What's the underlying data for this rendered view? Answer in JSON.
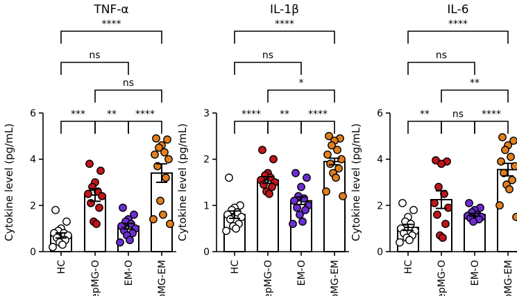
{
  "colors": {
    "HC": "#ffffff",
    "epMG-O": "#c0161b",
    "EM-O": "#6d2ed1",
    "epMG-EM": "#e07f1f",
    "stroke": "#000000"
  },
  "chart_data": [
    {
      "type": "scatter-bar",
      "title": "TNF-α",
      "ylabel": "Cytokine level (pg/mL)",
      "ylim": [
        0,
        6
      ],
      "yticks": [
        0,
        2,
        4,
        6
      ],
      "categories": [
        "HC",
        "epMG-O",
        "EM-O",
        "epMG-EM"
      ],
      "series": [
        {
          "name": "HC",
          "mean": 0.7,
          "sem": 0.11,
          "points": [
            1.8,
            1.3,
            1.0,
            0.9,
            0.8,
            0.8,
            0.7,
            0.6,
            0.5,
            0.4,
            0.3,
            0.2
          ]
        },
        {
          "name": "epMG-O",
          "mean": 2.45,
          "sem": 0.27,
          "points": [
            3.8,
            3.5,
            3.0,
            2.8,
            2.6,
            2.5,
            2.4,
            2.1,
            1.9,
            1.3,
            1.2
          ]
        },
        {
          "name": "EM-O",
          "mean": 1.1,
          "sem": 0.12,
          "points": [
            1.9,
            1.6,
            1.4,
            1.3,
            1.2,
            1.1,
            1.0,
            0.9,
            0.8,
            0.7,
            0.5,
            0.4
          ]
        },
        {
          "name": "epMG-EM",
          "mean": 3.4,
          "sem": 0.4,
          "points": [
            4.9,
            4.85,
            4.6,
            4.5,
            4.3,
            4.2,
            4.0,
            3.7,
            3.2,
            2.2,
            1.6,
            1.4,
            1.2
          ]
        }
      ],
      "comparisons": [
        {
          "a": 0,
          "b": 1,
          "label": "***"
        },
        {
          "a": 1,
          "b": 2,
          "label": "**"
        },
        {
          "a": 2,
          "b": 3,
          "label": "****"
        },
        {
          "a": 0,
          "b": 2,
          "label": "ns"
        },
        {
          "a": 1,
          "b": 3,
          "label": "ns"
        },
        {
          "a": 0,
          "b": 3,
          "label": "****"
        }
      ]
    },
    {
      "type": "scatter-bar",
      "title": "IL-1β",
      "ylabel": "Cytokine level (pg/mL)",
      "ylim": [
        0,
        3
      ],
      "yticks": [
        0,
        1,
        2,
        3
      ],
      "categories": [
        "HC",
        "epMG-O",
        "EM-O",
        "epMG-EM"
      ],
      "series": [
        {
          "name": "HC",
          "mean": 0.8,
          "sem": 0.08,
          "points": [
            1.6,
            1.0,
            0.95,
            0.9,
            0.85,
            0.8,
            0.75,
            0.7,
            0.6,
            0.55,
            0.5,
            0.45
          ]
        },
        {
          "name": "epMG-O",
          "mean": 1.55,
          "sem": 0.07,
          "points": [
            2.2,
            2.0,
            1.7,
            1.65,
            1.6,
            1.55,
            1.5,
            1.45,
            1.4,
            1.3,
            1.25
          ]
        },
        {
          "name": "EM-O",
          "mean": 1.1,
          "sem": 0.08,
          "points": [
            1.7,
            1.6,
            1.4,
            1.2,
            1.15,
            1.1,
            1.0,
            0.95,
            0.9,
            0.8,
            0.65,
            0.6
          ]
        },
        {
          "name": "epMG-EM",
          "mean": 1.95,
          "sem": 0.07,
          "points": [
            2.5,
            2.45,
            2.4,
            2.3,
            2.2,
            2.1,
            2.0,
            1.9,
            1.8,
            1.7,
            1.6,
            1.3,
            1.2
          ]
        }
      ],
      "comparisons": [
        {
          "a": 0,
          "b": 1,
          "label": "****"
        },
        {
          "a": 1,
          "b": 2,
          "label": "**"
        },
        {
          "a": 2,
          "b": 3,
          "label": "****"
        },
        {
          "a": 0,
          "b": 2,
          "label": "ns"
        },
        {
          "a": 1,
          "b": 3,
          "label": "*"
        },
        {
          "a": 0,
          "b": 3,
          "label": "****"
        }
      ]
    },
    {
      "type": "scatter-bar",
      "title": "IL-6",
      "ylabel": "Cytokine level (pg/mL)",
      "ylim": [
        0,
        6
      ],
      "yticks": [
        0,
        2,
        4,
        6
      ],
      "categories": [
        "HC",
        "epMG-O",
        "EM-O",
        "epMG-EM"
      ],
      "series": [
        {
          "name": "HC",
          "mean": 1.05,
          "sem": 0.13,
          "points": [
            2.1,
            1.8,
            1.5,
            1.3,
            1.2,
            1.0,
            0.9,
            0.8,
            0.7,
            0.6,
            0.5,
            0.4
          ]
        },
        {
          "name": "epMG-O",
          "mean": 2.25,
          "sem": 0.38,
          "points": [
            3.95,
            3.9,
            3.8,
            2.8,
            2.5,
            2.1,
            1.9,
            1.6,
            1.2,
            0.7,
            0.6
          ]
        },
        {
          "name": "EM-O",
          "mean": 1.6,
          "sem": 0.06,
          "points": [
            2.1,
            1.9,
            1.8,
            1.7,
            1.6,
            1.55,
            1.5,
            1.45,
            1.4,
            1.3
          ]
        },
        {
          "name": "epMG-EM",
          "mean": 3.55,
          "sem": 0.27,
          "points": [
            4.95,
            4.8,
            4.6,
            4.4,
            4.1,
            3.9,
            3.7,
            3.4,
            3.1,
            2.9,
            2.7,
            2.0,
            1.5
          ]
        }
      ],
      "comparisons": [
        {
          "a": 0,
          "b": 1,
          "label": "**"
        },
        {
          "a": 1,
          "b": 2,
          "label": "ns"
        },
        {
          "a": 2,
          "b": 3,
          "label": "****"
        },
        {
          "a": 0,
          "b": 2,
          "label": "ns"
        },
        {
          "a": 1,
          "b": 3,
          "label": "**"
        },
        {
          "a": 0,
          "b": 3,
          "label": "****"
        }
      ]
    }
  ]
}
